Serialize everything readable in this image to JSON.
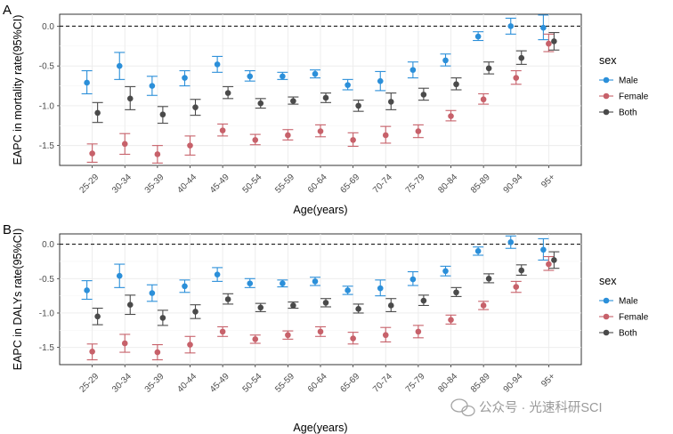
{
  "colors": {
    "Male": "#2b8fd9",
    "Female": "#c7616a",
    "Both": "#4a4a4a"
  },
  "legend": {
    "title": "sex",
    "labels": [
      "Male",
      "Female",
      "Both"
    ]
  },
  "watermark": {
    "text": "公众号 · 光速科研SCI",
    "icon": "wechat-icon"
  },
  "chart_data": [
    {
      "type": "scatter",
      "panel": "A",
      "xlabel": "Age(years)",
      "ylabel": "EAPC in mortality rate(95%CI)",
      "ylim": [
        -1.75,
        0.15
      ],
      "yticks": [
        "0.0",
        "-0.5",
        "-1.0",
        "-1.5"
      ],
      "ytick_values": [
        0,
        -0.5,
        -1,
        -1.5
      ],
      "reference_line": 0,
      "grid": true,
      "legend_position": "right",
      "categories": [
        "25-29",
        "30-34",
        "35-39",
        "40-44",
        "45-49",
        "50-54",
        "55-59",
        "60-64",
        "65-69",
        "70-74",
        "75-79",
        "80-84",
        "85-89",
        "90-94",
        "95+"
      ],
      "series": [
        {
          "name": "Male",
          "values": [
            -0.71,
            -0.5,
            -0.75,
            -0.65,
            -0.48,
            -0.63,
            -0.63,
            -0.6,
            -0.74,
            -0.69,
            -0.55,
            -0.43,
            -0.13,
            0.0,
            -0.02
          ],
          "lower": [
            -0.85,
            -0.67,
            -0.87,
            -0.75,
            -0.58,
            -0.69,
            -0.67,
            -0.65,
            -0.8,
            -0.81,
            -0.65,
            -0.5,
            -0.18,
            -0.1,
            -0.17
          ],
          "upper": [
            -0.56,
            -0.33,
            -0.63,
            -0.56,
            -0.38,
            -0.56,
            -0.58,
            -0.55,
            -0.67,
            -0.57,
            -0.45,
            -0.35,
            -0.07,
            0.1,
            0.14
          ]
        },
        {
          "name": "Female",
          "values": [
            -1.6,
            -1.48,
            -1.61,
            -1.5,
            -1.31,
            -1.43,
            -1.37,
            -1.32,
            -1.43,
            -1.37,
            -1.32,
            -1.13,
            -0.92,
            -0.65,
            -0.22
          ],
          "lower": [
            -1.71,
            -1.61,
            -1.72,
            -1.62,
            -1.38,
            -1.49,
            -1.43,
            -1.39,
            -1.51,
            -1.47,
            -1.4,
            -1.19,
            -0.98,
            -0.73,
            -0.32
          ],
          "upper": [
            -1.48,
            -1.35,
            -1.5,
            -1.38,
            -1.23,
            -1.36,
            -1.3,
            -1.24,
            -1.34,
            -1.26,
            -1.24,
            -1.06,
            -0.85,
            -0.56,
            -0.1
          ]
        },
        {
          "name": "Both",
          "values": [
            -1.09,
            -0.91,
            -1.11,
            -1.02,
            -0.84,
            -0.97,
            -0.94,
            -0.9,
            -1.0,
            -0.95,
            -0.86,
            -0.73,
            -0.53,
            -0.4,
            -0.19
          ],
          "lower": [
            -1.21,
            -1.05,
            -1.22,
            -1.12,
            -0.91,
            -1.03,
            -0.98,
            -0.96,
            -1.07,
            -1.05,
            -0.93,
            -0.8,
            -0.6,
            -0.48,
            -0.3
          ],
          "upper": [
            -0.96,
            -0.76,
            -1.01,
            -0.92,
            -0.76,
            -0.91,
            -0.89,
            -0.84,
            -0.93,
            -0.84,
            -0.78,
            -0.65,
            -0.45,
            -0.31,
            -0.08
          ]
        }
      ]
    },
    {
      "type": "scatter",
      "panel": "B",
      "xlabel": "Age(years)",
      "ylabel": "EAPC in DALYs rate(95%CI)",
      "ylim": [
        -1.75,
        0.15
      ],
      "yticks": [
        "0.0",
        "-0.5",
        "-1.0",
        "-1.5"
      ],
      "ytick_values": [
        0,
        -0.5,
        -1,
        -1.5
      ],
      "reference_line": 0,
      "grid": true,
      "legend_position": "right",
      "categories": [
        "25-29",
        "30-34",
        "35-39",
        "40-44",
        "45-49",
        "50-54",
        "55-59",
        "60-64",
        "65-69",
        "70-74",
        "75-79",
        "80-84",
        "85-89",
        "90-94",
        "95+"
      ],
      "series": [
        {
          "name": "Male",
          "values": [
            -0.67,
            -0.46,
            -0.71,
            -0.61,
            -0.44,
            -0.57,
            -0.57,
            -0.54,
            -0.67,
            -0.64,
            -0.51,
            -0.39,
            -0.1,
            0.03,
            -0.08
          ],
          "lower": [
            -0.8,
            -0.63,
            -0.83,
            -0.7,
            -0.54,
            -0.63,
            -0.62,
            -0.6,
            -0.73,
            -0.75,
            -0.6,
            -0.46,
            -0.16,
            -0.06,
            -0.23
          ],
          "upper": [
            -0.53,
            -0.29,
            -0.59,
            -0.52,
            -0.34,
            -0.5,
            -0.52,
            -0.48,
            -0.61,
            -0.52,
            -0.4,
            -0.32,
            -0.04,
            0.12,
            0.08
          ]
        },
        {
          "name": "Female",
          "values": [
            -1.56,
            -1.44,
            -1.57,
            -1.46,
            -1.27,
            -1.38,
            -1.32,
            -1.27,
            -1.37,
            -1.32,
            -1.27,
            -1.1,
            -0.89,
            -0.62,
            -0.29
          ],
          "lower": [
            -1.68,
            -1.57,
            -1.68,
            -1.58,
            -1.34,
            -1.44,
            -1.38,
            -1.34,
            -1.45,
            -1.42,
            -1.36,
            -1.16,
            -0.95,
            -0.7,
            -0.38
          ],
          "upper": [
            -1.45,
            -1.31,
            -1.46,
            -1.34,
            -1.2,
            -1.32,
            -1.26,
            -1.2,
            -1.28,
            -1.21,
            -1.18,
            -1.03,
            -0.83,
            -0.54,
            -0.18
          ]
        },
        {
          "name": "Both",
          "values": [
            -1.05,
            -0.88,
            -1.07,
            -0.98,
            -0.8,
            -0.92,
            -0.89,
            -0.85,
            -0.94,
            -0.89,
            -0.82,
            -0.7,
            -0.5,
            -0.38,
            -0.23
          ],
          "lower": [
            -1.17,
            -1.02,
            -1.18,
            -1.08,
            -0.87,
            -0.98,
            -0.93,
            -0.91,
            -1.0,
            -0.98,
            -0.89,
            -0.76,
            -0.56,
            -0.45,
            -0.35
          ],
          "upper": [
            -0.93,
            -0.74,
            -0.96,
            -0.88,
            -0.72,
            -0.86,
            -0.84,
            -0.79,
            -0.87,
            -0.79,
            -0.74,
            -0.63,
            -0.43,
            -0.3,
            -0.11
          ]
        }
      ]
    }
  ]
}
